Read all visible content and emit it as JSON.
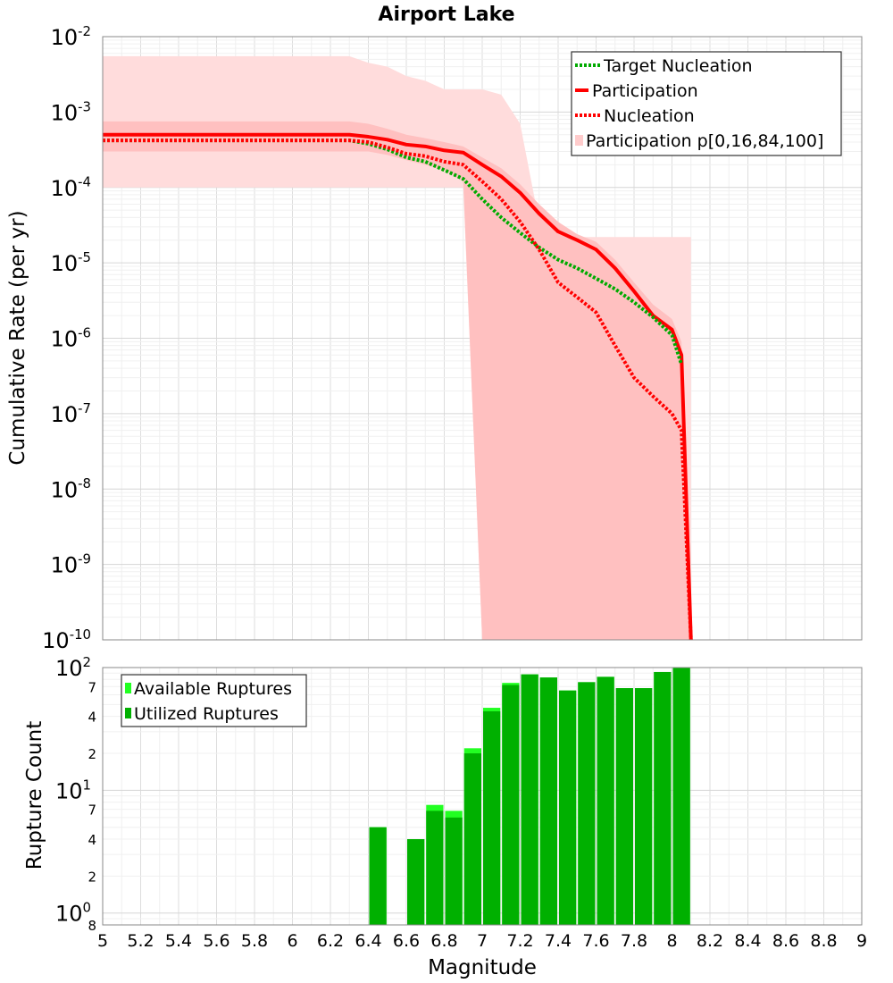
{
  "chart_data": [
    {
      "type": "line",
      "title": "Airport Lake",
      "xlabel": "",
      "ylabel": "Cumulative Rate (per yr)",
      "y_scale": "log",
      "xlim": [
        5,
        9
      ],
      "ylim": [
        1e-10,
        0.01
      ],
      "y_tick_labels": [
        {
          "base": "10",
          "exp": "-2"
        },
        {
          "base": "10",
          "exp": "-3"
        },
        {
          "base": "10",
          "exp": "-4"
        },
        {
          "base": "10",
          "exp": "-5"
        },
        {
          "base": "10",
          "exp": "-6"
        },
        {
          "base": "10",
          "exp": "-7"
        },
        {
          "base": "10",
          "exp": "-8"
        },
        {
          "base": "10",
          "exp": "-9"
        },
        {
          "base": "10",
          "exp": "-10"
        }
      ],
      "grid": true,
      "legend_position": "top-right",
      "series": [
        {
          "name": "Target Nucleation",
          "color": "#00aa00",
          "style": "dotted",
          "x": [
            5.0,
            6.3,
            6.4,
            6.5,
            6.6,
            6.7,
            6.8,
            6.9,
            7.0,
            7.1,
            7.2,
            7.3,
            7.4,
            7.5,
            7.6,
            7.7,
            7.8,
            7.9,
            8.0,
            8.05
          ],
          "y": [
            0.00042,
            0.00042,
            0.00038,
            0.00032,
            0.00025,
            0.00022,
            0.00017,
            0.00013,
            7e-05,
            4e-05,
            2.5e-05,
            1.6e-05,
            1.1e-05,
            8.5e-06,
            6.2e-06,
            4.5e-06,
            3e-06,
            1.9e-06,
            1.1e-06,
            4.5e-07
          ]
        },
        {
          "name": "Participation",
          "color": "#ff0000",
          "style": "solid",
          "x": [
            5.0,
            6.3,
            6.4,
            6.5,
            6.6,
            6.7,
            6.8,
            6.9,
            7.0,
            7.1,
            7.2,
            7.3,
            7.4,
            7.5,
            7.6,
            7.7,
            7.8,
            7.9,
            8.0,
            8.05,
            8.1
          ],
          "y": [
            0.0005,
            0.0005,
            0.00047,
            0.00043,
            0.00037,
            0.00035,
            0.00031,
            0.00029,
            0.0002,
            0.00014,
            8.5e-05,
            4.5e-05,
            2.6e-05,
            2e-05,
            1.5e-05,
            8.5e-06,
            4.2e-06,
            2e-06,
            1.3e-06,
            6e-07,
            1e-10
          ]
        },
        {
          "name": "Nucleation",
          "color": "#ff0000",
          "style": "dotted",
          "x": [
            5.0,
            6.3,
            6.4,
            6.5,
            6.6,
            6.7,
            6.8,
            6.9,
            7.0,
            7.1,
            7.2,
            7.3,
            7.4,
            7.5,
            7.6,
            7.7,
            7.8,
            7.9,
            8.0,
            8.05,
            8.1
          ],
          "y": [
            0.00042,
            0.00042,
            0.0004,
            0.00034,
            0.00028,
            0.00026,
            0.00022,
            0.0002,
            0.00012,
            7e-05,
            3.5e-05,
            1.5e-05,
            5.5e-06,
            3.5e-06,
            2.2e-06,
            8e-07,
            3e-07,
            1.7e-07,
            1e-07,
            6e-08,
            1e-10
          ]
        }
      ],
      "bands": {
        "name": "Participation p[0,16,84,100]",
        "outer_color": "#ffdcdc",
        "inner_color": "#ffc0c0",
        "outer": {
          "x": [
            5.0,
            6.3,
            6.4,
            6.5,
            6.6,
            6.7,
            6.8,
            6.9,
            7.0,
            7.1,
            7.2,
            7.3,
            7.4,
            7.5,
            7.6,
            7.7,
            7.8,
            7.9,
            8.0,
            8.05,
            8.1
          ],
          "upper": [
            0.0055,
            0.0055,
            0.0045,
            0.004,
            0.003,
            0.0026,
            0.002,
            0.002,
            0.002,
            0.0017,
            0.0007,
            3.5e-05,
            2.6e-05,
            2.2e-05,
            2.2e-05,
            2.2e-05,
            2.2e-05,
            2.2e-05,
            2.2e-05,
            2.2e-05,
            2.2e-05
          ],
          "lower": [
            0.0001,
            0.0001,
            0.0001,
            0.0001,
            0.0001,
            0.0001,
            0.0001,
            0.0001,
            1e-10,
            1e-10,
            1e-10,
            1e-10,
            1e-10,
            1e-10,
            1e-10,
            1e-10,
            1e-10,
            1e-10,
            1e-10,
            1e-10,
            1e-10
          ]
        },
        "inner": {
          "x": [
            5.0,
            6.3,
            6.4,
            6.5,
            6.6,
            6.7,
            6.8,
            6.9,
            7.0,
            7.1,
            7.2,
            7.3,
            7.4,
            7.5,
            7.6,
            7.7,
            7.8,
            7.9,
            8.0,
            8.05,
            8.1
          ],
          "upper": [
            0.00075,
            0.00075,
            0.0007,
            0.0006,
            0.0005,
            0.00045,
            0.0004,
            0.00035,
            0.00025,
            0.00018,
            0.00011,
            6e-05,
            3.5e-05,
            2.4e-05,
            1.9e-05,
            1.1e-05,
            5.5e-06,
            2.8e-06,
            1.8e-06,
            9e-07,
            1e-10
          ],
          "lower": [
            0.0003,
            0.0003,
            0.0003,
            0.00027,
            0.00023,
            0.0002,
            0.00017,
            0.00012,
            1e-10,
            1e-10,
            1e-10,
            1e-10,
            1e-10,
            1e-10,
            1e-10,
            1e-10,
            1e-10,
            1e-10,
            1e-10,
            1e-10,
            1e-10
          ]
        }
      }
    },
    {
      "type": "bar",
      "xlabel": "Magnitude",
      "ylabel": "Rupture Count",
      "y_scale": "log",
      "xlim": [
        5,
        9
      ],
      "ylim": [
        0.8,
        100
      ],
      "x_tick_labels": [
        "5",
        "5.2",
        "5.4",
        "5.6",
        "5.8",
        "6",
        "6.2",
        "6.4",
        "6.6",
        "6.8",
        "7",
        "7.2",
        "7.4",
        "7.6",
        "7.8",
        "8",
        "8.2",
        "8.4",
        "8.6",
        "8.8",
        "9"
      ],
      "y_major_tick_labels": [
        {
          "value": 100,
          "base": "10",
          "exp": "2"
        },
        {
          "value": 10,
          "base": "10",
          "exp": "1"
        },
        {
          "value": 1,
          "base": "10",
          "exp": "0"
        }
      ],
      "y_minor_tick_labels": [
        {
          "value": 70,
          "label": "7"
        },
        {
          "value": 40,
          "label": "4"
        },
        {
          "value": 20,
          "label": "2"
        },
        {
          "value": 7,
          "label": "7"
        },
        {
          "value": 4,
          "label": "4"
        },
        {
          "value": 2,
          "label": "2"
        },
        {
          "value": 0.8,
          "label": "8"
        }
      ],
      "grid": true,
      "legend_position": "top-left",
      "bin_width": 0.1,
      "categories": [
        6.45,
        6.65,
        6.75,
        6.85,
        6.95,
        7.05,
        7.15,
        7.25,
        7.35,
        7.45,
        7.55,
        7.65,
        7.75,
        7.85,
        7.95,
        8.05
      ],
      "series": [
        {
          "name": "Available Ruptures",
          "color": "#22ff22",
          "values": [
            5,
            4,
            7.6,
            6.8,
            22,
            47,
            75,
            88,
            83,
            65,
            76,
            84,
            68,
            68,
            92,
            100
          ]
        },
        {
          "name": "Utilized Ruptures",
          "color": "#00b000",
          "values": [
            5,
            4,
            6.8,
            6,
            20,
            44,
            72,
            88,
            83,
            65,
            76,
            84,
            68,
            68,
            92,
            100
          ]
        }
      ]
    }
  ]
}
